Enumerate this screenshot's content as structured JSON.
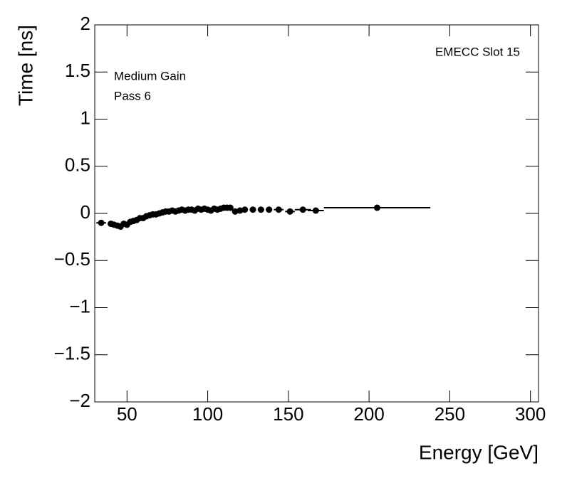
{
  "chart_data": {
    "type": "errorbar",
    "x_label": "Energy [GeV]",
    "y_label": "Time [ns]",
    "annotations": [
      "Medium Gain",
      "Pass 6",
      "EMECC Slot 15"
    ],
    "xlim": [
      30,
      305
    ],
    "ylim": [
      -2,
      2
    ],
    "xticks": [
      50,
      100,
      150,
      200,
      250,
      300
    ],
    "yticks": [
      {
        "value": -2,
        "label": "−2"
      },
      {
        "value": -1.5,
        "label": "−1.5"
      },
      {
        "value": -1,
        "label": "−1"
      },
      {
        "value": -0.5,
        "label": "−0.5"
      },
      0,
      0.5,
      1,
      1.5,
      2
    ],
    "series": [
      {
        "color": "#000000",
        "x": [
          34,
          40,
          42,
          44,
          46,
          48,
          50,
          52,
          54,
          56,
          58,
          60,
          62,
          64,
          66,
          68,
          70,
          72,
          74,
          76,
          78,
          80,
          82,
          84,
          86,
          88,
          90,
          92,
          94,
          96,
          98,
          100,
          102,
          104,
          106,
          108,
          110,
          112,
          114,
          117,
          120,
          123,
          128,
          133,
          138,
          144,
          151,
          159,
          167,
          205
        ],
        "xerr": [
          3,
          2,
          1,
          1,
          1,
          1,
          1,
          1,
          1,
          1,
          1,
          1,
          1,
          1,
          1,
          1,
          1,
          1,
          1,
          1,
          1,
          1,
          1,
          1,
          1,
          1,
          1,
          1,
          1,
          1,
          1,
          1,
          1,
          1,
          1,
          1,
          1,
          1,
          1,
          1.5,
          1.5,
          1.5,
          2,
          2,
          2,
          3,
          3,
          5,
          5,
          33
        ],
        "values": [
          -0.1,
          -0.11,
          -0.12,
          -0.13,
          -0.14,
          -0.11,
          -0.12,
          -0.09,
          -0.08,
          -0.07,
          -0.05,
          -0.05,
          -0.03,
          -0.02,
          -0.01,
          -0.01,
          0.0,
          0.01,
          0.02,
          0.02,
          0.03,
          0.02,
          0.03,
          0.04,
          0.03,
          0.04,
          0.04,
          0.03,
          0.05,
          0.04,
          0.05,
          0.04,
          0.03,
          0.05,
          0.04,
          0.05,
          0.06,
          0.06,
          0.06,
          0.02,
          0.03,
          0.04,
          0.04,
          0.04,
          0.04,
          0.04,
          0.02,
          0.04,
          0.03,
          0.06
        ],
        "yerr": [
          0.02,
          0.02,
          0.02,
          0.03,
          0.03,
          0.03,
          0.03,
          0.03,
          0.03,
          0.03,
          0.03,
          0.03,
          0.03,
          0.03,
          0.03,
          0.03,
          0.03,
          0.03,
          0.03,
          0.03,
          0.03,
          0.03,
          0.03,
          0.03,
          0.03,
          0.03,
          0.03,
          0.03,
          0.03,
          0.03,
          0.03,
          0.03,
          0.03,
          0.03,
          0.03,
          0.03,
          0.03,
          0.03,
          0.03,
          0.02,
          0.02,
          0.02,
          0.02,
          0.02,
          0.02,
          0.02,
          0.02,
          0.02,
          0.02,
          0.02
        ]
      }
    ]
  }
}
